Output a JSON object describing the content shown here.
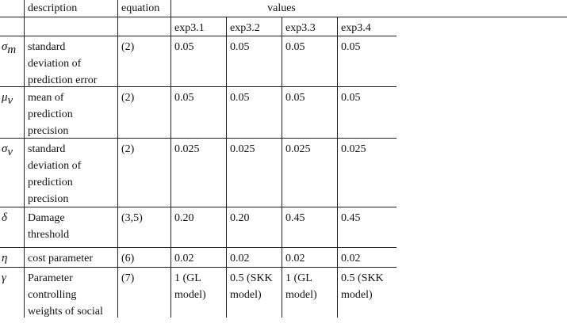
{
  "header": {
    "description": "description",
    "equation": "equation",
    "values": "values"
  },
  "experiments": [
    "exp3.1",
    "exp3.2",
    "exp3.3",
    "exp3.4"
  ],
  "rows": [
    {
      "symbol": "σ",
      "sub": "m",
      "description": [
        "standard",
        "deviation of",
        "prediction error"
      ],
      "equation": "(2)",
      "values": [
        "0.05",
        "0.05",
        "0.05",
        "0.05"
      ]
    },
    {
      "symbol": "μ",
      "sub": "v",
      "description": [
        "mean of",
        "prediction",
        "precision"
      ],
      "equation": "(2)",
      "values": [
        "0.05",
        "0.05",
        "0.05",
        "0.05"
      ]
    },
    {
      "symbol": "σ",
      "sub": "v",
      "description": [
        "standard",
        "deviation of",
        "prediction",
        "precision"
      ],
      "equation": "(2)",
      "values": [
        "0.025",
        "0.025",
        "0.025",
        "0.025"
      ]
    },
    {
      "symbol": "δ",
      "sub": null,
      "description": [
        "Damage",
        "threshold"
      ],
      "equation": "(3,5)",
      "values": [
        "0.20",
        "0.20",
        "0.45",
        "0.45"
      ]
    },
    {
      "symbol": "η",
      "sub": null,
      "description": [
        "cost parameter"
      ],
      "equation": "(6)",
      "values": [
        "0.02",
        "0.02",
        "0.02",
        "0.02"
      ]
    },
    {
      "symbol": "γ",
      "sub": null,
      "description": [
        "Parameter",
        "controlling",
        "weights of social"
      ],
      "equation": "(7)",
      "values": [
        "1 (GL model)",
        "0.5 (SKK model)",
        "1 (GL model)",
        "0.5 (SKK model)"
      ]
    }
  ]
}
